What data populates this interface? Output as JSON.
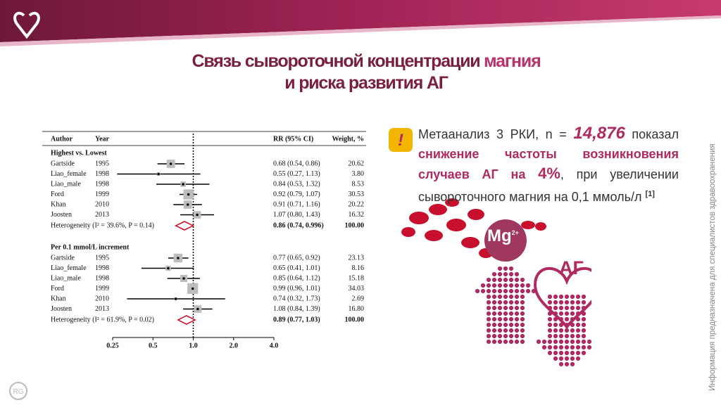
{
  "header": {
    "title_line1_a": "Связь сывороточной концентрации",
    "title_line1_b": "магния",
    "title_line2": "и риска развития АГ"
  },
  "forest_plot": {
    "columns": [
      "Author",
      "Year",
      "RR (95% CI)",
      "Weight, %"
    ],
    "log": true,
    "xlim": [
      0.25,
      4
    ],
    "xticks": [
      0.25,
      0.5,
      {
        "value": 1,
        "label": "1.0"
      },
      {
        "value": 2,
        "label": "2.0"
      },
      {
        "value": 4,
        "label": "4.0"
      }
    ],
    "groups": [
      {
        "name": "Highest vs. Lowest",
        "studies": [
          {
            "author": "Gartside",
            "year": 1995,
            "rr": 0.68,
            "ci": [
              0.54,
              0.86
            ],
            "label": "0.68 (0.54, 0.86)",
            "weight": 20.62
          },
          {
            "author": "Liao_female",
            "year": 1998,
            "rr": 0.55,
            "ci": [
              0.27,
              1.13
            ],
            "label": "0.55 (0.27, 1.13)",
            "weight": 3.8,
            "weight_label": "3.80"
          },
          {
            "author": "Liao_male",
            "year": 1998,
            "rr": 0.84,
            "ci": [
              0.53,
              1.32
            ],
            "label": "0.84 (0.53, 1.32)",
            "weight": 8.53
          },
          {
            "author": "Ford",
            "year": 1999,
            "rr": 0.92,
            "ci": [
              0.79,
              1.07
            ],
            "label": "0.92 (0.79, 1.07)",
            "weight": 30.53
          },
          {
            "author": "Khan",
            "year": 2010,
            "rr": 0.91,
            "ci": [
              0.71,
              1.16
            ],
            "label": "0.91 (0.71, 1.16)",
            "weight": 20.22
          },
          {
            "author": "Joosten",
            "year": 2013,
            "rr": 1.07,
            "ci": [
              0.8,
              1.43
            ],
            "label": "1.07 (0.80, 1.43)",
            "weight": 16.32
          }
        ],
        "summary": {
          "heterogeneity": "Heterogeneity (I² = 39.6%, P = 0.14)",
          "rr": 0.86,
          "ci": [
            0.74,
            0.996
          ],
          "label": "0.86 (0.74, 0.996)",
          "weight": 100,
          "weight_label": "100.00"
        }
      },
      {
        "name": "Per 0.1 mmol/L increment",
        "studies": [
          {
            "author": "Gartside",
            "year": 1995,
            "rr": 0.77,
            "ci": [
              0.65,
              0.92
            ],
            "label": "0.77 (0.65, 0.92)",
            "weight": 23.13
          },
          {
            "author": "Liao_female",
            "year": 1998,
            "rr": 0.65,
            "ci": [
              0.41,
              1.01
            ],
            "label": "0.65 (0.41, 1.01)",
            "weight": 8.16
          },
          {
            "author": "Liao_male",
            "year": 1998,
            "rr": 0.85,
            "ci": [
              0.64,
              1.12
            ],
            "label": "0.85 (0.64, 1.12)",
            "weight": 15.18
          },
          {
            "author": "Ford",
            "year": 1999,
            "rr": 0.99,
            "ci": [
              0.96,
              1.01
            ],
            "label": "0.99 (0.96, 1.01)",
            "weight": 34.03
          },
          {
            "author": "Khan",
            "year": 2010,
            "rr": 0.74,
            "ci": [
              0.32,
              1.73
            ],
            "label": "0.74 (0.32, 1.73)",
            "weight": 2.69
          },
          {
            "author": "Joosten",
            "year": 2013,
            "rr": 1.08,
            "ci": [
              0.84,
              1.39
            ],
            "label": "1.08 (0.84, 1.39)",
            "weight": 16.8,
            "weight_label": "16.80"
          }
        ],
        "summary": {
          "heterogeneity": "Heterogeneity (I² = 61.9%, P = 0.02)",
          "rr": 0.89,
          "ci": [
            0.77,
            1.03
          ],
          "label": "0.89 (0.77, 1.03)",
          "weight": 100,
          "weight_label": "100.00"
        }
      }
    ]
  },
  "callout": {
    "icon": "!",
    "p1": "Метаанализ 3 РКИ, n = ",
    "n": "14,876",
    "p2": " показал ",
    "p3": "снижение частоты возникновения случаев АГ на ",
    "pct": "4%",
    "p4": ", при увеличении сывороточного магния на 0,1 ммоль/л ",
    "ref": "[1]"
  },
  "illustration": {
    "mg": "Mg",
    "charge": "2+",
    "heart": "АГ"
  },
  "side_note": "Информация предназначена для специалистов здравоохранения",
  "logo": "RG"
}
